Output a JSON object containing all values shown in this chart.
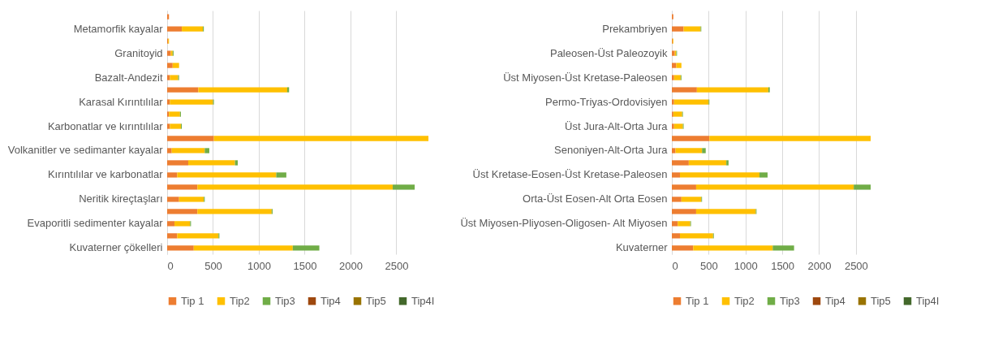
{
  "chart_data": [
    {
      "type": "bar",
      "orientation": "horizontal",
      "stacked": true,
      "grid": "x",
      "legend": "bottom",
      "categories": [
        null,
        "Metamorfik kayalar",
        null,
        "Granitoyid",
        null,
        "Bazalt-Andezit",
        null,
        "Karasal Kırıntılılar",
        null,
        "Karbonatlar ve kırıntılılar ",
        null,
        "Volkanitler ve sedimanter kayalar",
        null,
        "Kırıntılılar ve karbonatlar",
        null,
        "Neritik kireçtaşları ",
        null,
        "Evaporitli sedimenter kayalar",
        null,
        "Kuvaterner çökelleri"
      ],
      "series": [
        {
          "name": "Tip 1",
          "color": "#ed7d31",
          "values": [
            20,
            160,
            10,
            40,
            60,
            30,
            340,
            30,
            20,
            30,
            510,
            50,
            230,
            110,
            330,
            130,
            330,
            80,
            110,
            290
          ]
        },
        {
          "name": "Tip2",
          "color": "#ffc000",
          "values": [
            null,
            230,
            10,
            20,
            70,
            90,
            970,
            470,
            120,
            120,
            2340,
            360,
            510,
            1080,
            2130,
            270,
            810,
            170,
            450,
            1080
          ]
        },
        {
          "name": "Tip3",
          "color": "#70ad47",
          "values": [
            null,
            10,
            null,
            10,
            null,
            10,
            20,
            10,
            10,
            10,
            null,
            50,
            30,
            110,
            240,
            10,
            10,
            10,
            10,
            290
          ]
        },
        {
          "name": "Tip4",
          "color": "#9e480e",
          "values": [
            null,
            null,
            null,
            null,
            null,
            null,
            null,
            null,
            null,
            null,
            null,
            null,
            null,
            null,
            null,
            null,
            null,
            null,
            null,
            null
          ]
        },
        {
          "name": "Tip5",
          "color": "#997300",
          "values": [
            null,
            null,
            null,
            null,
            null,
            null,
            null,
            null,
            null,
            null,
            null,
            null,
            null,
            null,
            null,
            null,
            null,
            null,
            null,
            null
          ]
        },
        {
          "name": "Tip4I",
          "color": "#43682b",
          "values": [
            null,
            null,
            null,
            null,
            null,
            null,
            null,
            null,
            null,
            null,
            null,
            null,
            null,
            null,
            null,
            null,
            null,
            null,
            null,
            null
          ]
        }
      ],
      "xlim": [
        0,
        2850
      ],
      "xticks": [
        0,
        500,
        1000,
        1500,
        2000,
        2500
      ]
    },
    {
      "type": "bar",
      "orientation": "horizontal",
      "stacked": true,
      "grid": "x",
      "legend": "bottom",
      "categories": [
        null,
        "Prekambriyen",
        null,
        "Paleosen-Üst Paleozoyik",
        null,
        "Üst Miyosen-Üst Kretase-Paleosen",
        null,
        "Permo-Triyas-Ordovisiyen",
        null,
        "Üst Jura-Alt-Orta Jura",
        null,
        "Senoniyen-Alt-Orta Jura",
        null,
        "Üst Kretase-Eosen-Üst Kretase-Paleosen",
        null,
        "Orta-Üst Eosen-Alt Orta Eosen",
        null,
        "Üst Miyosen-Pliyosen-Oligosen- Alt Miyosen",
        null,
        "Kuvaterner "
      ],
      "series": [
        {
          "name": "Tip 1",
          "color": "#ed7d31",
          "values": [
            20,
            160,
            10,
            40,
            60,
            30,
            340,
            30,
            20,
            30,
            510,
            50,
            230,
            110,
            330,
            130,
            330,
            80,
            110,
            290
          ]
        },
        {
          "name": "Tip2",
          "color": "#ffc000",
          "values": [
            null,
            230,
            10,
            20,
            70,
            90,
            970,
            470,
            120,
            120,
            2190,
            360,
            510,
            1080,
            2140,
            270,
            810,
            170,
            450,
            1080
          ]
        },
        {
          "name": "Tip3",
          "color": "#70ad47",
          "values": [
            null,
            10,
            null,
            10,
            null,
            10,
            20,
            10,
            10,
            10,
            null,
            50,
            30,
            110,
            230,
            10,
            10,
            10,
            10,
            290
          ]
        },
        {
          "name": "Tip4",
          "color": "#9e480e",
          "values": [
            null,
            null,
            null,
            null,
            null,
            null,
            null,
            null,
            null,
            null,
            null,
            null,
            null,
            null,
            null,
            null,
            null,
            null,
            null,
            null
          ]
        },
        {
          "name": "Tip5",
          "color": "#997300",
          "values": [
            null,
            null,
            null,
            null,
            null,
            null,
            null,
            null,
            null,
            null,
            null,
            null,
            null,
            null,
            null,
            null,
            null,
            null,
            null,
            null
          ]
        },
        {
          "name": "Tip4I",
          "color": "#43682b",
          "values": [
            null,
            null,
            null,
            null,
            null,
            null,
            null,
            null,
            null,
            null,
            null,
            null,
            null,
            null,
            null,
            null,
            null,
            null,
            null,
            null
          ]
        }
      ],
      "xlim": [
        0,
        2700
      ],
      "xticks": [
        0,
        500,
        1000,
        1500,
        2000,
        2500
      ]
    }
  ]
}
